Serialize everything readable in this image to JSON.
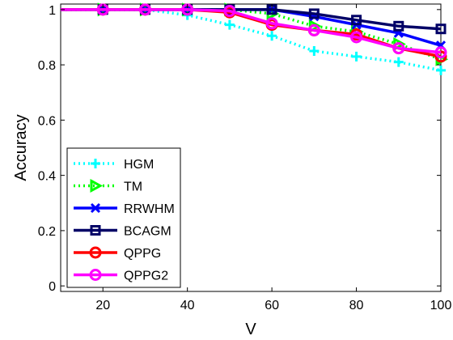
{
  "chart_data": {
    "type": "line",
    "title": "",
    "xlabel": "V",
    "ylabel": "Accuracy",
    "xlim": [
      10,
      100
    ],
    "ylim": [
      -0.02,
      1.02
    ],
    "xticks": [
      20,
      40,
      60,
      80,
      100
    ],
    "yticks": [
      0,
      0.2,
      0.4,
      0.6,
      0.8,
      1
    ],
    "ytick_labels": [
      "0",
      "0.2",
      "0.4",
      "0.6",
      "0.8",
      "1"
    ],
    "grid": false,
    "legend_position": "bottom-left",
    "x": [
      10,
      20,
      30,
      40,
      50,
      60,
      70,
      80,
      90,
      100
    ],
    "series": [
      {
        "name": "HGM",
        "color": "#00ffff",
        "dash": "dotted",
        "marker": "plus",
        "values": [
          1.0,
          1.0,
          1.0,
          0.98,
          0.945,
          0.905,
          0.85,
          0.83,
          0.81,
          0.78
        ]
      },
      {
        "name": "TM",
        "color": "#00ff00",
        "dash": "dotted",
        "marker": "triangle-right",
        "values": [
          1.0,
          1.0,
          1.0,
          1.0,
          1.0,
          0.985,
          0.94,
          0.92,
          0.875,
          0.82
        ]
      },
      {
        "name": "RRWHM",
        "color": "#0000ff",
        "dash": "solid",
        "marker": "x",
        "values": [
          1.0,
          1.0,
          1.0,
          1.0,
          1.0,
          1.0,
          0.975,
          0.945,
          0.915,
          0.87
        ]
      },
      {
        "name": "BCAGM",
        "color": "#000066",
        "dash": "solid",
        "marker": "square",
        "values": [
          1.0,
          1.0,
          1.0,
          1.0,
          1.0,
          1.0,
          0.985,
          0.962,
          0.94,
          0.93
        ]
      },
      {
        "name": "QPPG",
        "color": "#ff0000",
        "dash": "solid",
        "marker": "circle",
        "values": [
          1.0,
          1.0,
          1.0,
          1.0,
          0.99,
          0.945,
          0.925,
          0.91,
          0.86,
          0.83
        ]
      },
      {
        "name": "QPPG2",
        "color": "#ff00ff",
        "dash": "solid",
        "marker": "circle",
        "values": [
          1.0,
          1.0,
          1.0,
          1.0,
          0.995,
          0.95,
          0.925,
          0.9,
          0.86,
          0.845
        ]
      }
    ]
  }
}
